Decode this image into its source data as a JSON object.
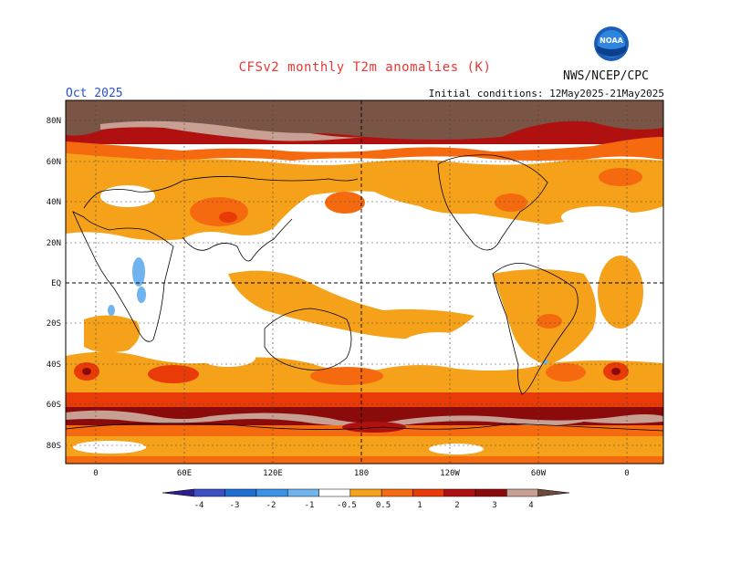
{
  "header": {
    "title": "CFSv2 monthly T2m anomalies (K)",
    "agency": "NWS/NCEP/CPC",
    "month": "Oct 2025",
    "initial_conditions": "Initial conditions: 12May2025-21May2025",
    "logo_text": "NOAA"
  },
  "axes": {
    "lat_labels": [
      "80N",
      "60N",
      "40N",
      "20N",
      "EQ",
      "20S",
      "40S",
      "60S",
      "80S"
    ],
    "lon_labels": [
      "0",
      "60E",
      "120E",
      "180",
      "120W",
      "60W",
      "0"
    ]
  },
  "colorbar": {
    "tick_labels": [
      "-4",
      "-3",
      "-2",
      "-1",
      "-0.5",
      "0.5",
      "1",
      "2",
      "3",
      "4"
    ],
    "colors": [
      "#2a1f8c",
      "#3d4fc2",
      "#1e6fd2",
      "#3a92e6",
      "#6fb4ef",
      "#ffffff",
      "#f5a11a",
      "#f56a0f",
      "#e83b08",
      "#b01010",
      "#8b0a0a",
      "#c7a093",
      "#6e4a3a"
    ]
  },
  "map_colors": {
    "weak_warm": "#f5a11a",
    "mod_warm": "#f56a0f",
    "strong_warm": "#e83b08",
    "very_strong": "#b01010",
    "extreme": "#8b0a0a",
    "pink": "#c7a093",
    "brown": "#7a5545",
    "cool": "#6fb4ef",
    "cool_strong": "#3a92e6"
  }
}
